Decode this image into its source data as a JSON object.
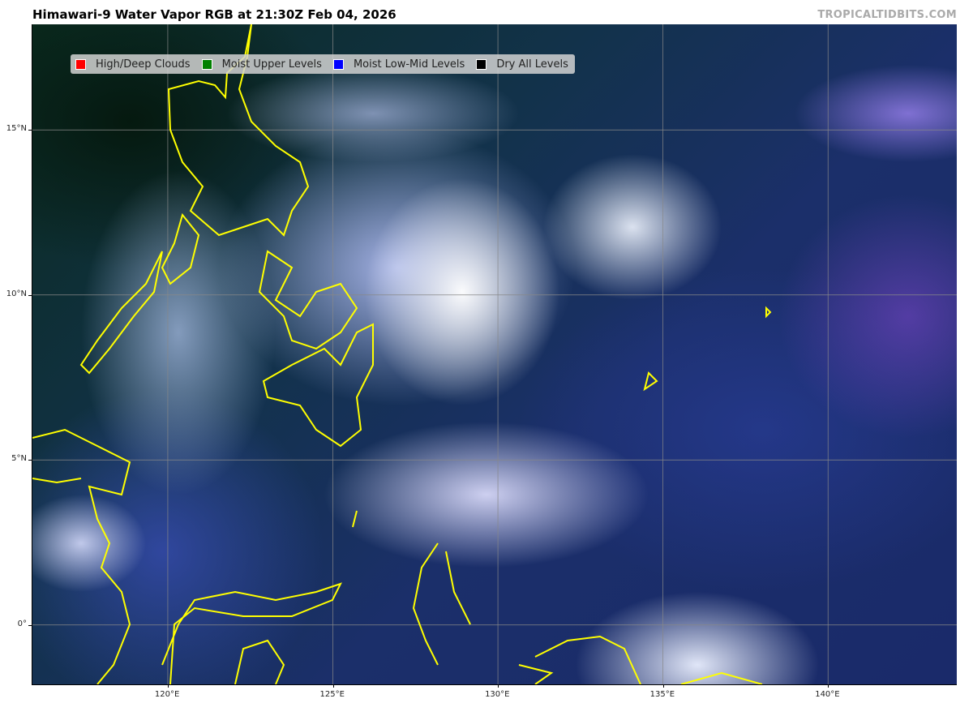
{
  "title": "Himawari-9 Water Vapor RGB at 21:30Z Feb 04, 2026",
  "credit": "TROPICALTIDBITS.COM",
  "legend": [
    {
      "label": "High/Deep Clouds",
      "color": "#ff0000"
    },
    {
      "label": "Moist Upper Levels",
      "color": "#008000"
    },
    {
      "label": "Moist Low-Mid Levels",
      "color": "#0000ff"
    },
    {
      "label": "Dry All Levels",
      "color": "#000000"
    }
  ],
  "map": {
    "lon_range": [
      115.9,
      143.9
    ],
    "lat_range": [
      -1.8,
      18.2
    ],
    "lon_ticks": [
      {
        "value": 120,
        "label": "120°E"
      },
      {
        "value": 125,
        "label": "125°E"
      },
      {
        "value": 130,
        "label": "130°E"
      },
      {
        "value": 135,
        "label": "135°E"
      },
      {
        "value": 140,
        "label": "140°E"
      }
    ],
    "lat_ticks": [
      {
        "value": 0,
        "label": "0°"
      },
      {
        "value": 5,
        "label": "5°N"
      },
      {
        "value": 10,
        "label": "10°N"
      },
      {
        "value": 15,
        "label": "15°N"
      }
    ],
    "coastline_color": "#ffff00",
    "gridline_color": "#888888"
  }
}
